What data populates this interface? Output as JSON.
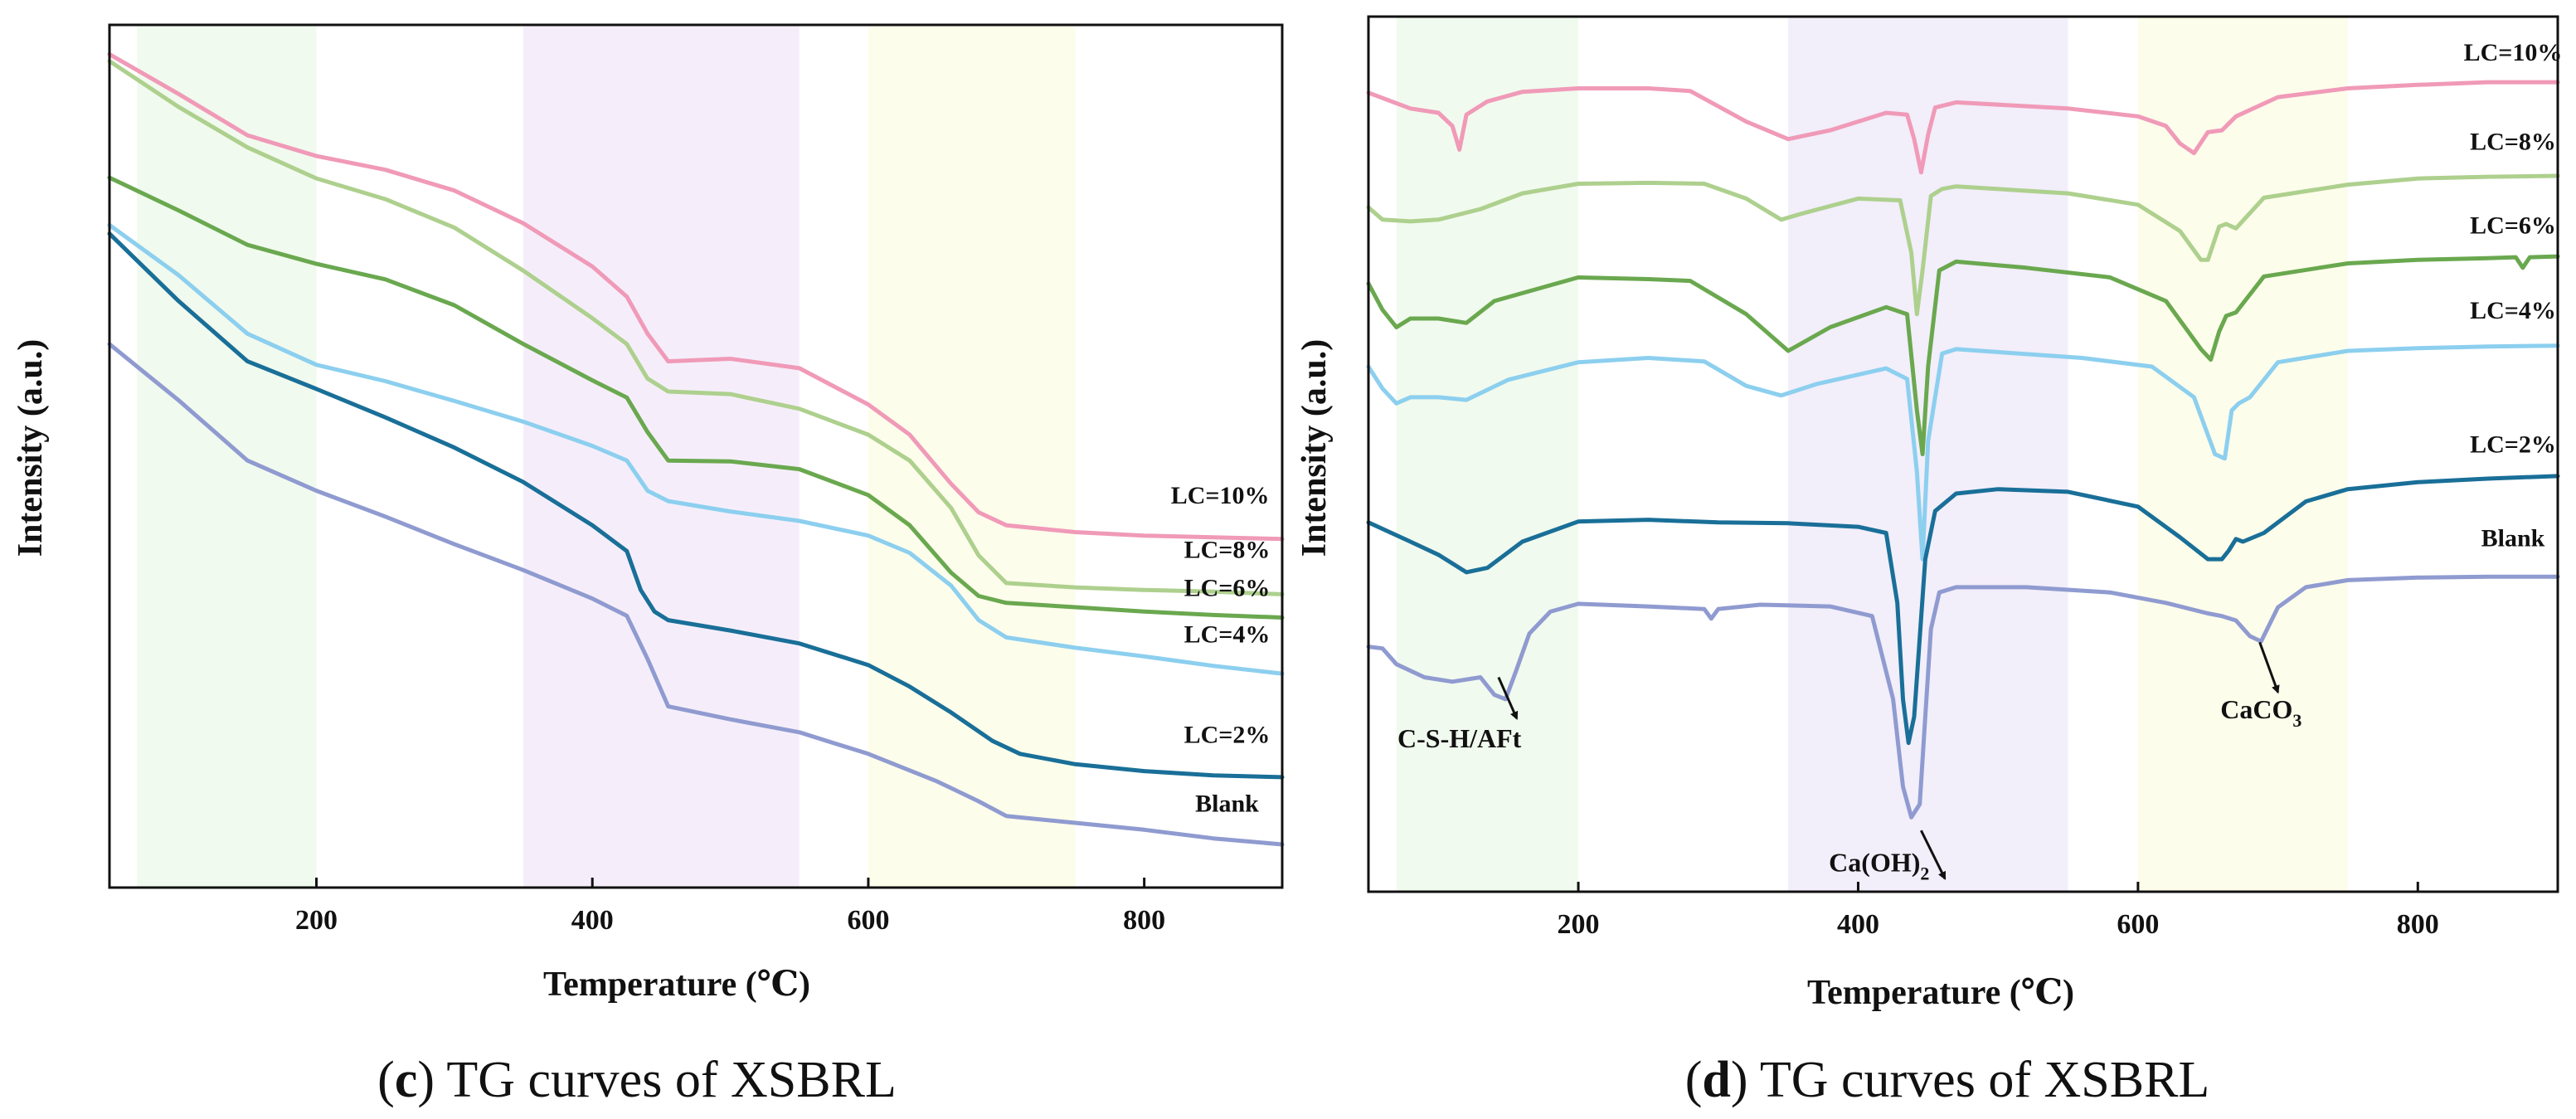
{
  "chart_data": [
    {
      "id": "c",
      "type": "line",
      "caption_letter": "c",
      "caption_text": "TG curves of XSBRL",
      "xlabel": "Temperature (℃)",
      "ylabel": "Intensity (a.u.)",
      "xlim": [
        50,
        900
      ],
      "ylim": [
        0,
        100
      ],
      "xticks": [
        "200",
        "400",
        "600",
        "800"
      ],
      "xtick_values": [
        200,
        400,
        600,
        800
      ],
      "shaded_regions": [
        {
          "x0": 70,
          "x1": 200,
          "color": "#f1faee"
        },
        {
          "x0": 350,
          "x1": 550,
          "color": "#f5eefa"
        },
        {
          "x0": 600,
          "x1": 750,
          "color": "#fdfdeb"
        }
      ],
      "series": [
        {
          "name": "LC=10%",
          "color": "#f09ab8",
          "x": [
            50,
            100,
            150,
            200,
            250,
            300,
            350,
            400,
            425,
            440,
            455,
            500,
            550,
            600,
            630,
            660,
            680,
            700,
            750,
            800,
            850,
            900
          ],
          "y": [
            96.6,
            92.0,
            87.2,
            84.8,
            83.2,
            80.8,
            77.0,
            72.0,
            68.5,
            64.2,
            61.0,
            61.3,
            60.2,
            56.0,
            52.5,
            46.8,
            43.5,
            42.0,
            41.2,
            40.8,
            40.6,
            40.4
          ]
        },
        {
          "name": "LC=8%",
          "color": "#aed08e",
          "x": [
            50,
            100,
            150,
            200,
            250,
            300,
            350,
            400,
            425,
            440,
            455,
            500,
            550,
            600,
            630,
            660,
            680,
            700,
            750,
            800,
            850,
            900
          ],
          "y": [
            95.8,
            90.5,
            85.8,
            82.2,
            79.8,
            76.5,
            71.5,
            66.0,
            63.0,
            59.0,
            57.5,
            57.2,
            55.5,
            52.5,
            49.5,
            44.0,
            38.5,
            35.3,
            34.8,
            34.5,
            34.3,
            34.0
          ]
        },
        {
          "name": "LC=6%",
          "color": "#6aa84f",
          "x": [
            50,
            100,
            150,
            200,
            250,
            300,
            350,
            400,
            425,
            440,
            455,
            500,
            550,
            600,
            630,
            660,
            680,
            700,
            750,
            800,
            850,
            900
          ],
          "y": [
            82.3,
            78.5,
            74.5,
            72.3,
            70.5,
            67.5,
            63.0,
            58.8,
            56.8,
            52.8,
            49.5,
            49.4,
            48.5,
            45.5,
            42.0,
            36.5,
            33.8,
            33.0,
            32.5,
            32.0,
            31.6,
            31.3
          ]
        },
        {
          "name": "LC=4%",
          "color": "#8ccfef",
          "x": [
            50,
            100,
            150,
            200,
            250,
            300,
            350,
            400,
            425,
            440,
            455,
            500,
            550,
            600,
            630,
            660,
            680,
            700,
            750,
            800,
            850,
            900
          ],
          "y": [
            76.8,
            71.0,
            64.2,
            60.6,
            58.7,
            56.4,
            54.0,
            51.2,
            49.5,
            46.0,
            44.8,
            43.6,
            42.5,
            40.8,
            38.8,
            35.0,
            31.0,
            29.0,
            27.8,
            26.8,
            25.7,
            24.8
          ]
        },
        {
          "name": "LC=2%",
          "color": "#196f98",
          "x": [
            50,
            100,
            150,
            200,
            250,
            300,
            350,
            400,
            425,
            435,
            445,
            455,
            500,
            550,
            600,
            630,
            660,
            690,
            710,
            750,
            800,
            850,
            900
          ],
          "y": [
            75.8,
            68.0,
            61.0,
            57.8,
            54.5,
            51.0,
            47.0,
            42.0,
            39.0,
            34.5,
            32.0,
            31.0,
            29.8,
            28.3,
            25.8,
            23.3,
            20.3,
            17.0,
            15.5,
            14.3,
            13.5,
            13.0,
            12.8
          ]
        },
        {
          "name": "Blank",
          "color": "#8f9bd0",
          "x": [
            50,
            100,
            150,
            200,
            250,
            300,
            350,
            400,
            425,
            440,
            455,
            500,
            550,
            600,
            650,
            680,
            700,
            750,
            800,
            850,
            900
          ],
          "y": [
            63.0,
            56.5,
            49.5,
            46.0,
            43.0,
            39.8,
            36.8,
            33.5,
            31.5,
            26.5,
            21.0,
            19.5,
            18.0,
            15.5,
            12.3,
            10.0,
            8.3,
            7.5,
            6.7,
            5.7,
            5.0
          ]
        }
      ],
      "series_labels": [
        {
          "text": "LC=10%",
          "x": 855,
          "y": 44.5
        },
        {
          "text": "LC=8%",
          "x": 860,
          "y": 38.2
        },
        {
          "text": "LC=6%",
          "x": 860,
          "y": 33.8
        },
        {
          "text": "LC=4%",
          "x": 860,
          "y": 28.4
        },
        {
          "text": "LC=2%",
          "x": 860,
          "y": 16.8
        },
        {
          "text": "Blank",
          "x": 860,
          "y": 8.8
        }
      ]
    },
    {
      "id": "d",
      "type": "line",
      "caption_letter": "d",
      "caption_text": "TG curves of XSBRL",
      "xlabel": "Temperature (℃)",
      "ylabel": "Intensity (a.u.)",
      "xlim": [
        50,
        900
      ],
      "ylim": [
        0,
        100
      ],
      "xticks": [
        "200",
        "400",
        "600",
        "800"
      ],
      "xtick_values": [
        200,
        400,
        600,
        800
      ],
      "shaded_regions": [
        {
          "x0": 70,
          "x1": 200,
          "color": "#f1faee"
        },
        {
          "x0": 350,
          "x1": 550,
          "color": "#f2eefa"
        },
        {
          "x0": 600,
          "x1": 750,
          "color": "#fdfdeb"
        }
      ],
      "series": [
        {
          "name": "LC=10%",
          "color": "#f09ab8",
          "x": [
            50,
            80,
            100,
            110,
            115,
            120,
            135,
            160,
            200,
            250,
            280,
            320,
            350,
            380,
            420,
            435,
            440,
            445,
            450,
            455,
            470,
            550,
            600,
            620,
            630,
            640,
            650,
            660,
            670,
            700,
            750,
            800,
            850,
            900
          ],
          "y": [
            91.3,
            89.5,
            89.0,
            87.5,
            84.8,
            88.8,
            90.3,
            91.4,
            91.8,
            91.8,
            91.5,
            88.0,
            86.0,
            87.0,
            89.0,
            88.8,
            86.0,
            82.2,
            86.5,
            89.6,
            90.2,
            89.5,
            88.6,
            87.5,
            85.5,
            84.4,
            86.8,
            87.0,
            88.6,
            90.8,
            91.8,
            92.2,
            92.5,
            92.5
          ]
        },
        {
          "name": "LC=8%",
          "color": "#aed08e",
          "x": [
            50,
            60,
            80,
            100,
            130,
            160,
            200,
            250,
            290,
            320,
            345,
            360,
            400,
            430,
            438,
            442,
            446,
            452,
            460,
            470,
            550,
            600,
            630,
            645,
            650,
            658,
            663,
            670,
            690,
            750,
            800,
            850,
            900
          ],
          "y": [
            78.2,
            76.8,
            76.6,
            76.8,
            78.0,
            79.8,
            80.9,
            81.0,
            80.9,
            79.2,
            76.8,
            77.5,
            79.2,
            79.0,
            73.0,
            66.0,
            71.0,
            79.5,
            80.3,
            80.6,
            79.8,
            78.5,
            75.5,
            72.2,
            72.2,
            76.0,
            76.3,
            75.8,
            79.3,
            80.8,
            81.5,
            81.7,
            81.8
          ]
        },
        {
          "name": "LC=6%",
          "color": "#6aa84f",
          "x": [
            50,
            60,
            70,
            80,
            100,
            120,
            140,
            200,
            250,
            280,
            320,
            350,
            380,
            420,
            435,
            442,
            446,
            450,
            458,
            470,
            520,
            580,
            620,
            645,
            652,
            658,
            663,
            670,
            690,
            750,
            800,
            850,
            870,
            875,
            880,
            900
          ],
          "y": [
            69.5,
            66.5,
            64.5,
            65.5,
            65.5,
            65.0,
            67.5,
            70.2,
            70.0,
            69.8,
            66.0,
            61.8,
            64.5,
            66.8,
            66.0,
            55.0,
            50.0,
            60.0,
            71.0,
            72.0,
            71.3,
            70.2,
            67.5,
            62.0,
            60.8,
            64.0,
            65.8,
            66.2,
            70.3,
            71.8,
            72.2,
            72.4,
            72.5,
            71.3,
            72.5,
            72.6
          ]
        },
        {
          "name": "LC=4%",
          "color": "#8ccfef",
          "x": [
            50,
            60,
            70,
            80,
            100,
            120,
            150,
            200,
            250,
            290,
            320,
            345,
            370,
            420,
            435,
            442,
            446,
            450,
            460,
            470,
            560,
            610,
            640,
            655,
            662,
            667,
            672,
            680,
            700,
            750,
            800,
            850,
            900
          ],
          "y": [
            60.0,
            57.5,
            55.8,
            56.5,
            56.5,
            56.2,
            58.5,
            60.5,
            61.0,
            60.6,
            57.8,
            56.7,
            58.0,
            59.8,
            58.6,
            48.0,
            38.0,
            51.5,
            61.5,
            62.0,
            61.0,
            60.0,
            56.5,
            50.0,
            49.5,
            55.0,
            55.8,
            56.5,
            60.5,
            61.8,
            62.1,
            62.3,
            62.4
          ]
        },
        {
          "name": "LC=2%",
          "color": "#196f98",
          "x": [
            50,
            80,
            100,
            120,
            135,
            160,
            200,
            250,
            300,
            350,
            400,
            420,
            428,
            432,
            436,
            440,
            448,
            455,
            470,
            500,
            550,
            600,
            630,
            650,
            660,
            665,
            670,
            675,
            690,
            720,
            750,
            800,
            850,
            900
          ],
          "y": [
            42.2,
            40.0,
            38.5,
            36.5,
            37.0,
            40.0,
            42.3,
            42.5,
            42.2,
            42.1,
            41.7,
            41.0,
            33.0,
            22.0,
            17.0,
            20.0,
            38.0,
            43.5,
            45.5,
            46.0,
            45.7,
            44.0,
            40.5,
            38.0,
            38.0,
            39.0,
            40.3,
            40.0,
            41.0,
            44.6,
            46.0,
            46.8,
            47.2,
            47.5
          ]
        },
        {
          "name": "Blank",
          "color": "#8f9bd0",
          "x": [
            50,
            60,
            70,
            90,
            110,
            130,
            140,
            148,
            155,
            165,
            180,
            200,
            250,
            290,
            295,
            300,
            330,
            380,
            410,
            425,
            432,
            438,
            444,
            448,
            452,
            458,
            470,
            520,
            580,
            620,
            650,
            660,
            670,
            680,
            688,
            700,
            720,
            750,
            800,
            850,
            900
          ],
          "y": [
            28.0,
            27.8,
            26.0,
            24.5,
            24.0,
            24.5,
            22.5,
            22.0,
            25.0,
            29.5,
            32.0,
            32.9,
            32.6,
            32.3,
            31.2,
            32.3,
            32.8,
            32.6,
            31.5,
            22.0,
            12.0,
            8.5,
            10.0,
            20.0,
            30.0,
            34.2,
            34.8,
            34.8,
            34.2,
            33.0,
            31.8,
            31.5,
            31.0,
            29.2,
            28.6,
            32.5,
            34.8,
            35.6,
            35.9,
            36.0,
            36.0
          ]
        }
      ],
      "series_labels": [
        {
          "text": "LC=10%",
          "x": 868,
          "y": 95.0
        },
        {
          "text": "LC=8%",
          "x": 868,
          "y": 84.8
        },
        {
          "text": "LC=6%",
          "x": 868,
          "y": 75.2
        },
        {
          "text": "LC=4%",
          "x": 868,
          "y": 65.5
        },
        {
          "text": "LC=2%",
          "x": 868,
          "y": 50.2
        },
        {
          "text": "Blank",
          "x": 868,
          "y": 39.5
        }
      ],
      "annotations": [
        {
          "text": "C-S-H/AFt",
          "sub": "",
          "x": 115,
          "y": 16.5,
          "arrow_from": [
            143,
            24.5
          ],
          "arrow_to": [
            156,
            19.8
          ]
        },
        {
          "text": "Ca(OH)",
          "sub": "2",
          "x": 415,
          "y": 2.3,
          "arrow_from": [
            445,
            7.0
          ],
          "arrow_to": [
            462,
            1.5
          ]
        },
        {
          "text": "CaCO",
          "sub": "3",
          "x": 688,
          "y": 19.8,
          "arrow_from": [
            687,
            28.5
          ],
          "arrow_to": [
            700,
            22.8
          ]
        }
      ]
    }
  ]
}
